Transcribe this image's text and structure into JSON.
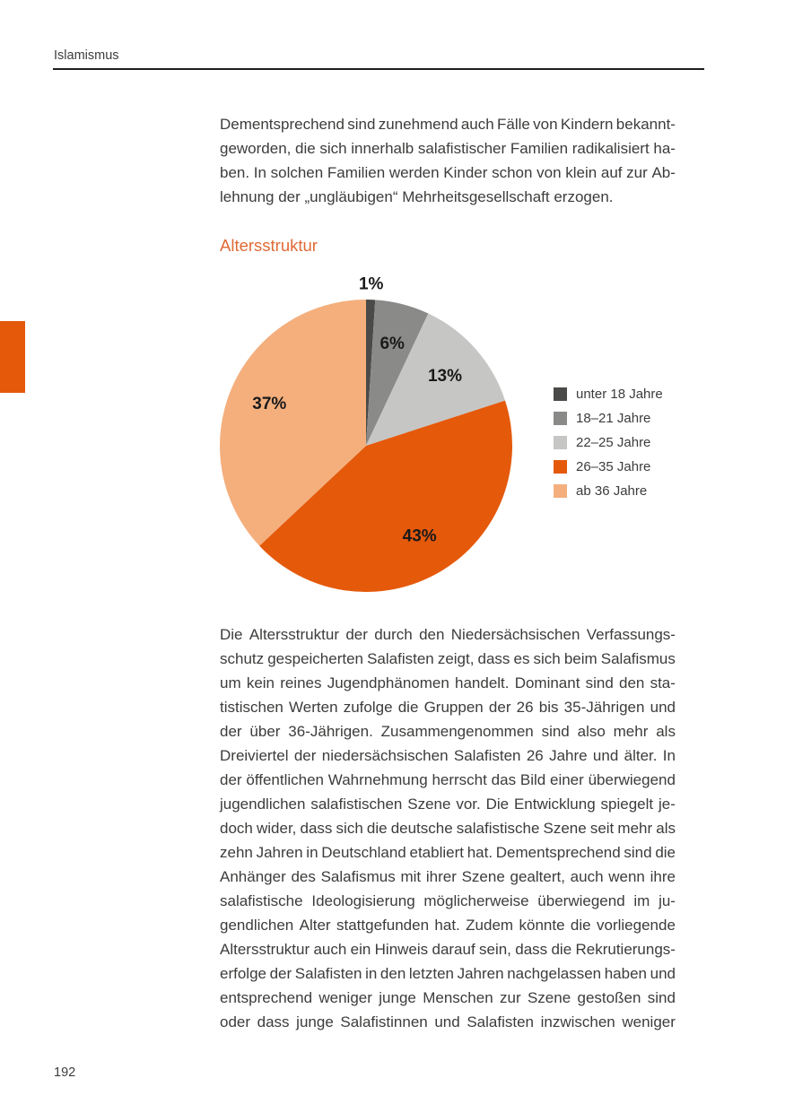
{
  "page": {
    "running_header": "Islamismus",
    "page_number": "192"
  },
  "section": {
    "heading": "Altersstruktur"
  },
  "intro_paragraph": {
    "last_line_justified": false,
    "lines": [
      "Dementsprechend sind zunehmend auch Fälle von Kindern bekannt-",
      "geworden, die sich innerhalb salafistischer Familien radikalisiert ha-",
      "ben. In solchen Familien werden Kinder schon von klein auf zur Ab-",
      "lehnung der „ungläubigen“ Mehrheitsgesellschaft erzogen."
    ]
  },
  "body_paragraph": {
    "last_line_justified": true,
    "lines": [
      "Die Altersstruktur der durch den Niedersächsischen Verfassungs-",
      "schutz gespeicherten Salafisten zeigt, dass es sich beim Salafismus",
      "um kein reines Jugendphänomen handelt. Dominant sind den sta-",
      "tistischen Werten zufolge die Gruppen der 26 bis 35-Jährigen und",
      "der über 36-Jährigen. Zusammengenommen sind also mehr als",
      "Dreiviertel der niedersächsischen Salafisten 26 Jahre und älter. In",
      "der öffentlichen Wahrnehmung herrscht das Bild einer überwiegend",
      "jugendlichen salafistischen Szene vor. Die Entwicklung spiegelt je-",
      "doch wider, dass sich die deutsche salafistische Szene seit mehr als",
      "zehn Jahren in Deutschland etabliert hat. Dementsprechend sind die",
      "Anhänger des Salafismus mit ihrer Szene gealtert, auch wenn ihre",
      "salafistische Ideologisierung möglicherweise überwiegend im ju-",
      "gendlichen Alter stattgefunden hat. Zudem könnte die vorliegende",
      "Altersstruktur auch ein Hinweis darauf sein, dass die Rekrutierungs-",
      "erfolge der Salafisten in den letzten Jahren nachgelassen haben und",
      "entsprechend weniger junge Menschen zur Szene gestoßen sind",
      "oder dass junge Salafistinnen und Salafisten inzwischen weniger"
    ]
  },
  "chart_data": {
    "type": "pie",
    "title": "Altersstruktur",
    "categories": [
      "unter 18 Jahre",
      "18–21 Jahre",
      "22–25 Jahre",
      "26–35 Jahre",
      "ab 36 Jahre"
    ],
    "values": [
      1,
      6,
      13,
      43,
      37
    ],
    "value_labels": [
      "1%",
      "6%",
      "13%",
      "43%",
      "37%"
    ],
    "unit": "percent",
    "colors": [
      "#4A4A48",
      "#8A8A89",
      "#C6C6C5",
      "#E5590B",
      "#F4AF7D"
    ],
    "legend_position": "right",
    "start_angle_deg": 0,
    "direction": "clockwise"
  },
  "colors": {
    "accent_orange": "#E5590B",
    "light_orange": "#F4AF7D",
    "heading_orange": "#E06A35",
    "dark_gray": "#4A4A48",
    "mid_gray": "#8A8A89",
    "light_gray": "#C6C6C5",
    "text": "#3C3C3B",
    "rule": "#1D1D1B"
  }
}
